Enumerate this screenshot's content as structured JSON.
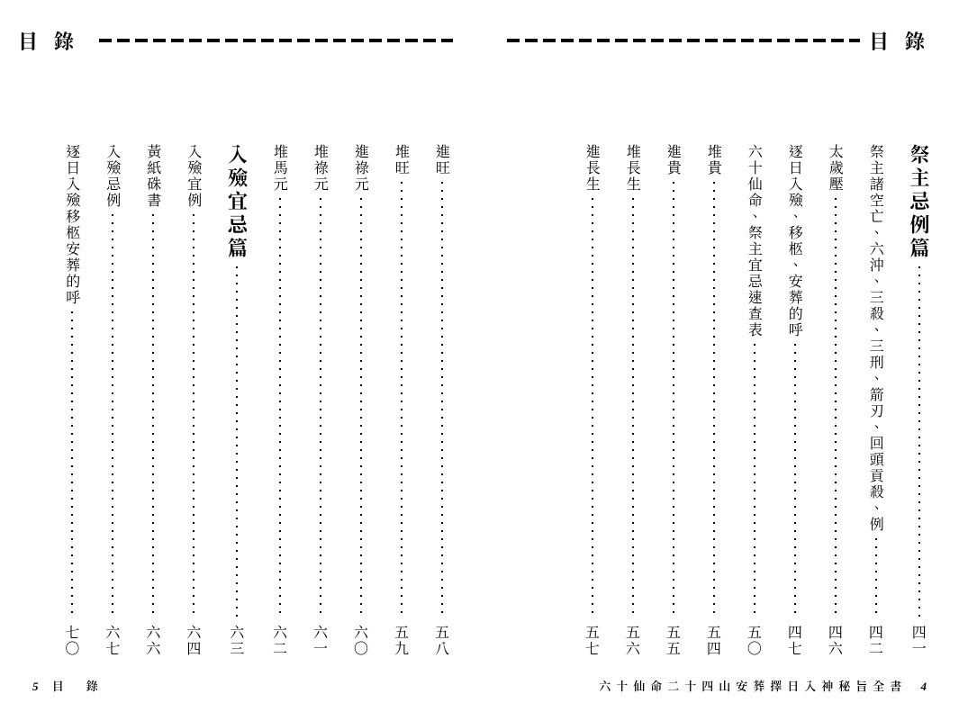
{
  "header_label": "目錄",
  "left_page": {
    "footer_page": "5",
    "footer_text": "目　錄",
    "entries": [
      {
        "type": "entry",
        "title": "進旺",
        "page": "五八"
      },
      {
        "type": "entry",
        "title": "堆旺",
        "page": "五九"
      },
      {
        "type": "entry",
        "title": "進祿元",
        "page": "六〇"
      },
      {
        "type": "entry",
        "title": "堆祿元",
        "page": "六一"
      },
      {
        "type": "entry",
        "title": "堆馬元",
        "page": "六二"
      },
      {
        "type": "heading",
        "title": "入殮宜忌篇",
        "page": "六三"
      },
      {
        "type": "entry",
        "title": "入殮宜例",
        "page": "六四"
      },
      {
        "type": "entry",
        "title": "黃紙硃書",
        "page": "六六"
      },
      {
        "type": "entry",
        "title": "入殮忌例",
        "page": "六七"
      },
      {
        "type": "entry",
        "title": "逐日入殮移柩安葬的呼",
        "page": "七〇"
      }
    ]
  },
  "right_page": {
    "footer_page": "4",
    "footer_text": "六十仙命二十四山安葬擇日入神秘旨全書",
    "entries": [
      {
        "type": "heading",
        "title": "祭主忌例篇",
        "page": "四一"
      },
      {
        "type": "entry",
        "title": "祭主諸空亡、六沖、三殺、三刑、箭刃、回頭貢殺、例",
        "page": "四二"
      },
      {
        "type": "entry",
        "title": "太歲壓",
        "page": "四六"
      },
      {
        "type": "entry",
        "title": "逐日入殮、移柩、安葬的呼",
        "page": "四七"
      },
      {
        "type": "entry",
        "title": "六十仙命、祭主宜忌速查表",
        "page": "五〇"
      },
      {
        "type": "entry",
        "title": "堆貴",
        "page": "五四"
      },
      {
        "type": "entry",
        "title": "進貴",
        "page": "五五"
      },
      {
        "type": "entry",
        "title": "堆長生",
        "page": "五六"
      },
      {
        "type": "entry",
        "title": "進長生",
        "page": "五七"
      }
    ]
  }
}
